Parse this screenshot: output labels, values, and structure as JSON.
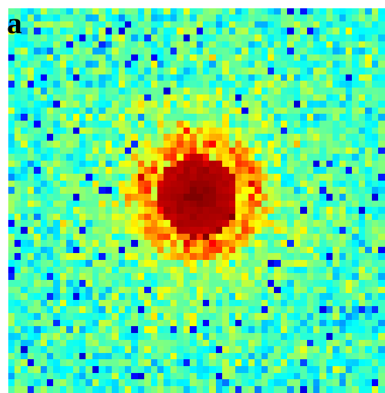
{
  "figure": {
    "panel_label": "a",
    "colormap": "jet",
    "grid_cells": 58
  },
  "colors": {
    "background": "#ffffff",
    "label": "#000000"
  }
}
